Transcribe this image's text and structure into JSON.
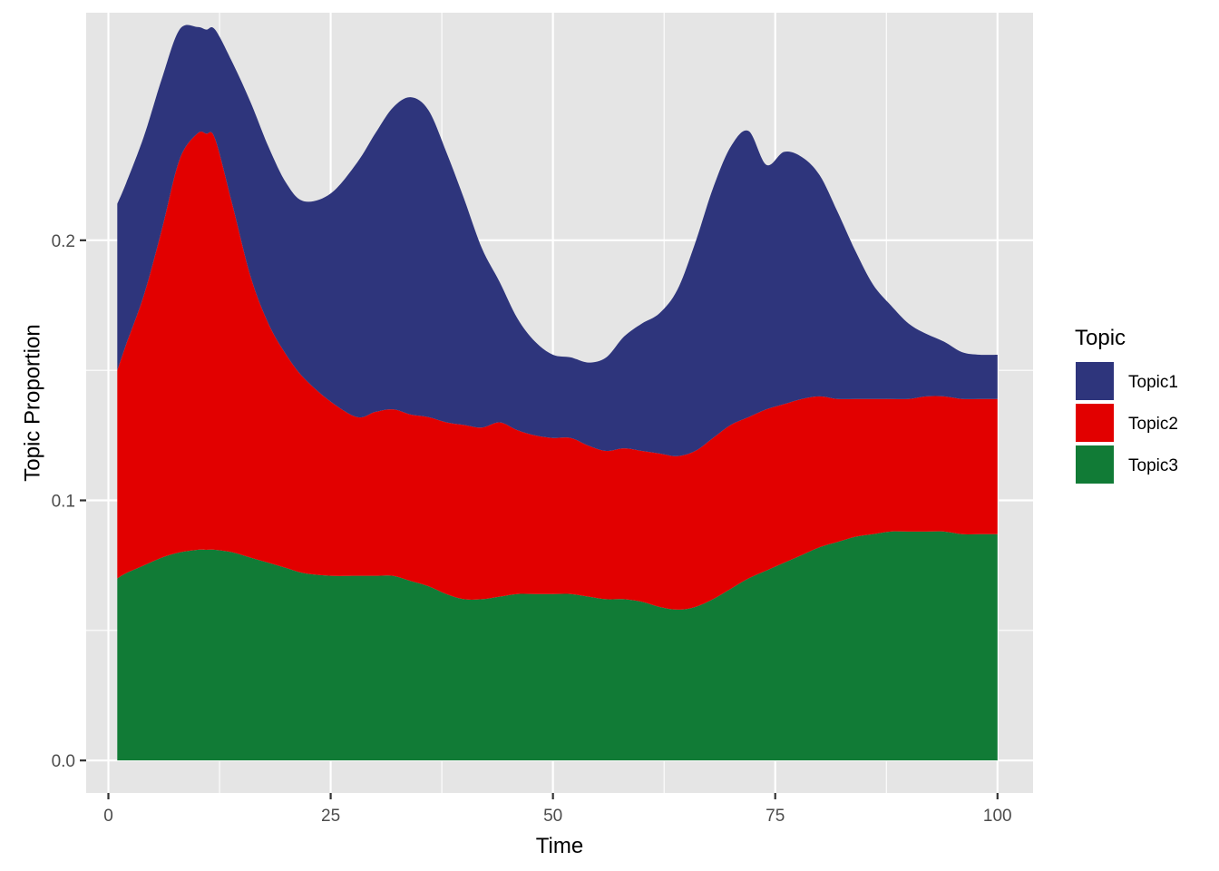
{
  "chart_data": {
    "type": "area",
    "stacked": true,
    "xlabel": "Time",
    "ylabel": "Topic Proportion",
    "xlim": [
      -2.5,
      104
    ],
    "ylim": [
      -0.0125,
      0.2875
    ],
    "x_ticks": [
      0,
      25,
      50,
      75,
      100
    ],
    "x_tick_labels": [
      "0",
      "25",
      "50",
      "75",
      "100"
    ],
    "y_ticks": [
      0.0,
      0.1,
      0.2
    ],
    "y_tick_labels": [
      "0.0",
      "0.1",
      "0.2"
    ],
    "grid": true,
    "background": "#e5e5e5",
    "legend": {
      "title": "Topic",
      "position": "right",
      "entries": [
        "Topic1",
        "Topic2",
        "Topic3"
      ]
    },
    "x": [
      1,
      2,
      4,
      6,
      8,
      10,
      11,
      12,
      14,
      16,
      18,
      20,
      22,
      25,
      28,
      30,
      32,
      34,
      36,
      38,
      40,
      42,
      44,
      46,
      48,
      50,
      52,
      54,
      56,
      58,
      60,
      62,
      64,
      66,
      68,
      70,
      72,
      74,
      76,
      78,
      80,
      82,
      84,
      86,
      88,
      90,
      92,
      94,
      96,
      98,
      100
    ],
    "series": [
      {
        "name": "Topic1",
        "color": "#2e357c",
        "values": [
          0.064,
          0.062,
          0.061,
          0.058,
          0.05,
          0.041,
          0.04,
          0.042,
          0.055,
          0.067,
          0.068,
          0.066,
          0.068,
          0.08,
          0.098,
          0.107,
          0.116,
          0.122,
          0.118,
          0.104,
          0.087,
          0.069,
          0.054,
          0.043,
          0.036,
          0.032,
          0.031,
          0.032,
          0.036,
          0.043,
          0.049,
          0.054,
          0.064,
          0.08,
          0.096,
          0.107,
          0.11,
          0.094,
          0.097,
          0.093,
          0.085,
          0.072,
          0.057,
          0.044,
          0.036,
          0.029,
          0.024,
          0.021,
          0.018,
          0.017,
          0.017
        ]
      },
      {
        "name": "Topic2",
        "color": "#e20000",
        "values": [
          0.08,
          0.088,
          0.104,
          0.126,
          0.151,
          0.16,
          0.16,
          0.158,
          0.133,
          0.108,
          0.092,
          0.082,
          0.075,
          0.067,
          0.061,
          0.063,
          0.064,
          0.064,
          0.065,
          0.066,
          0.067,
          0.066,
          0.067,
          0.063,
          0.061,
          0.06,
          0.06,
          0.058,
          0.057,
          0.058,
          0.058,
          0.059,
          0.059,
          0.06,
          0.062,
          0.063,
          0.062,
          0.062,
          0.061,
          0.06,
          0.058,
          0.055,
          0.053,
          0.052,
          0.051,
          0.051,
          0.052,
          0.052,
          0.052,
          0.052,
          0.052
        ]
      },
      {
        "name": "Topic3",
        "color": "#117b36",
        "values": [
          0.07,
          0.072,
          0.075,
          0.078,
          0.08,
          0.081,
          0.081,
          0.081,
          0.08,
          0.078,
          0.076,
          0.074,
          0.072,
          0.071,
          0.071,
          0.071,
          0.071,
          0.069,
          0.067,
          0.064,
          0.062,
          0.062,
          0.063,
          0.064,
          0.064,
          0.064,
          0.064,
          0.063,
          0.062,
          0.062,
          0.061,
          0.059,
          0.058,
          0.059,
          0.062,
          0.066,
          0.07,
          0.073,
          0.076,
          0.079,
          0.082,
          0.084,
          0.086,
          0.087,
          0.088,
          0.088,
          0.088,
          0.088,
          0.087,
          0.087,
          0.087
        ]
      }
    ]
  }
}
